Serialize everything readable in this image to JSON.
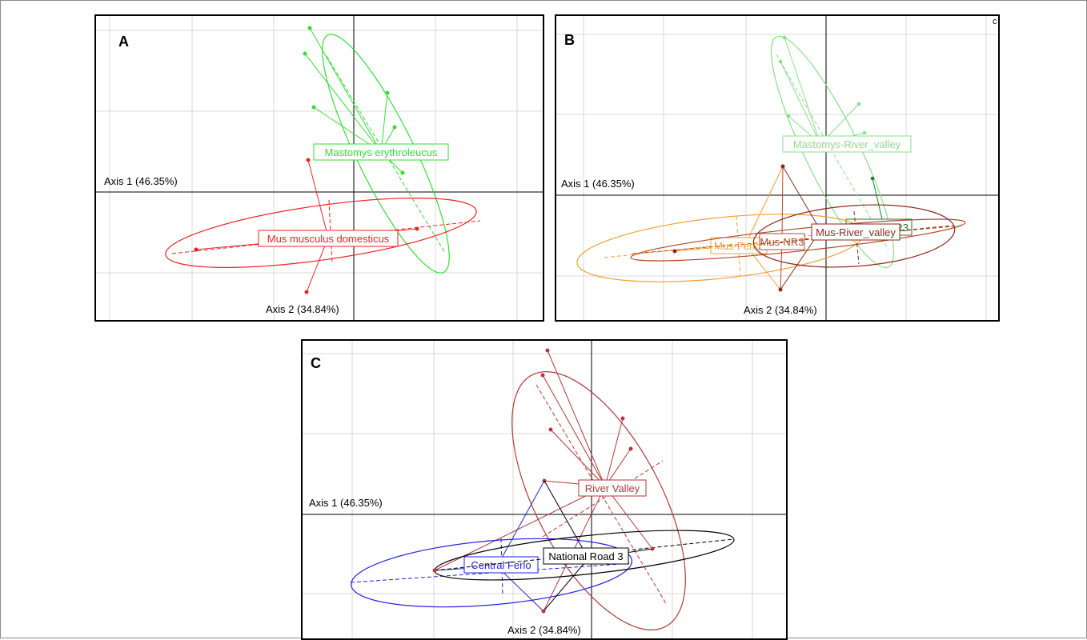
{
  "colors": {
    "grid": "#d9d9d9",
    "axis": "#000000",
    "mastomys": "#33dd33",
    "mus": "#ee2222",
    "mastomys_river_valley": "#88e088",
    "mus_ferlo": "#f0a030",
    "mus_nr3": "#b04a28",
    "mus_river_valley": "#8a2a18",
    "mastomys_nr3": "#227a22",
    "river_valley": "#b03a3a",
    "central_ferlo": "#2222dd",
    "national_road_3": "#000000"
  },
  "panels": [
    {
      "letter": "A",
      "xlabel": "Axis 1 (46.35%)",
      "ylabel": "Axis 2 (34.84%)"
    },
    {
      "letter": "B",
      "xlabel": "Axis 1 (46.35%)",
      "ylabel": "Axis 2 (34.84%)",
      "corner_mark": "c"
    },
    {
      "letter": "C",
      "xlabel": "Axis 1 (46.35%)",
      "ylabel": "Axis 2 (34.84%)"
    }
  ],
  "chart_data": [
    {
      "type": "scatter",
      "panel": "A",
      "xlabel": "Axis 1 (46.35%)",
      "ylabel": "Axis 2 (34.84%)",
      "grid": true,
      "xlim": [
        -3.0,
        2.3
      ],
      "ylim": [
        -1.6,
        2.0
      ],
      "series": [
        {
          "name": "Mastomys erythroleucus",
          "color": "#33dd33",
          "centroid": [
            0.55,
            0.48
          ],
          "points": [
            [
              -0.55,
              2.05
            ],
            [
              -0.6,
              1.7
            ],
            [
              0.4,
              1.22
            ],
            [
              -0.5,
              1.05
            ],
            [
              0.5,
              0.8
            ],
            [
              0.6,
              0.2
            ]
          ],
          "ellipse": {
            "cx": 0.35,
            "cy": 0.65,
            "rx": 1.55,
            "ry": 0.33,
            "angle_deg": 64
          }
        },
        {
          "name": "Mus musculus domesticus",
          "color": "#ee2222",
          "centroid": [
            -0.3,
            -0.55
          ],
          "points": [
            [
              -0.55,
              0.4
            ],
            [
              -1.95,
              -0.72
            ],
            [
              0.8,
              -0.45
            ],
            [
              -0.6,
              -1.25
            ]
          ],
          "ellipse": {
            "cx": -0.6,
            "cy": -0.6,
            "rx": 2.2,
            "ry": 0.3,
            "angle_deg": 8
          }
        }
      ]
    },
    {
      "type": "scatter",
      "panel": "B",
      "xlabel": "Axis 1 (46.35%)",
      "ylabel": "Axis 2 (34.84%)",
      "grid": true,
      "xlim": [
        -3.0,
        2.4
      ],
      "ylim": [
        -1.5,
        2.0
      ],
      "series": [
        {
          "name": "Mastomys-River_valley",
          "color": "#88e088",
          "centroid": [
            0.3,
            0.62
          ],
          "points": [
            [
              -0.55,
              1.95
            ],
            [
              -0.6,
              1.65
            ],
            [
              0.4,
              1.12
            ],
            [
              -0.5,
              0.95
            ],
            [
              0.5,
              0.75
            ],
            [
              0.6,
              0.15
            ]
          ],
          "ellipse": {
            "cx": 0.3,
            "cy": 0.6,
            "rx": 1.5,
            "ry": 0.32,
            "angle_deg": 64
          }
        },
        {
          "name": "Mus-Ferlo",
          "color": "#f0a030",
          "centroid": [
            -1.1,
            -0.63
          ],
          "points": [
            [
              -0.55,
              0.35
            ],
            [
              -1.9,
              -0.7
            ],
            [
              -0.6,
              -1.2
            ]
          ],
          "ellipse": {
            "cx": -1.2,
            "cy": -0.65,
            "rx": 1.85,
            "ry": 0.45,
            "angle_deg": 6
          }
        },
        {
          "name": "Mus-NR3",
          "color": "#b04a28",
          "centroid": [
            -0.55,
            -0.6
          ],
          "points": [
            [
              -0.55,
              0.35
            ],
            [
              -0.6,
              -1.2
            ]
          ],
          "ellipse": {
            "cx": -0.55,
            "cy": -0.62,
            "rx": 2.45,
            "ry": 0.14,
            "angle_deg": 8
          }
        },
        {
          "name": "Mus-River_valley",
          "color": "#8a2a18",
          "centroid": [
            0.2,
            -0.48
          ],
          "points": [
            [
              -0.55,
              0.35
            ],
            [
              0.75,
              -0.4
            ],
            [
              -0.6,
              -1.2
            ]
          ],
          "ellipse": {
            "cx": 0.4,
            "cy": -0.52,
            "rx": 1.6,
            "ry": 0.42,
            "angle_deg": 4
          }
        },
        {
          "name": "NR3",
          "color": "#227a22",
          "centroid": [
            0.72,
            -0.38
          ],
          "points": [
            [
              0.6,
              0.2
            ]
          ],
          "ellipse": null
        }
      ]
    },
    {
      "type": "scatter",
      "panel": "C",
      "xlabel": "Axis 1 (46.35%)",
      "ylabel": "Axis 2 (34.84%)",
      "grid": true,
      "xlim": [
        -3.6,
        2.1
      ],
      "ylim": [
        -1.5,
        2.1
      ],
      "series": [
        {
          "name": "River Valley",
          "color": "#b03a3a",
          "centroid": [
            0.3,
            0.3
          ],
          "points": [
            [
              -0.55,
              2.05
            ],
            [
              -0.6,
              1.75
            ],
            [
              0.4,
              1.22
            ],
            [
              -0.5,
              1.05
            ],
            [
              0.5,
              0.8
            ],
            [
              -0.6,
              0.4
            ],
            [
              0.8,
              -0.45
            ],
            [
              -0.6,
              -1.25
            ]
          ],
          "ellipse": {
            "cx": 0.25,
            "cy": 0.3,
            "rx": 1.75,
            "ry": 0.65,
            "angle_deg": 62
          }
        },
        {
          "name": "Central Ferlo",
          "color": "#2222dd",
          "centroid": [
            -1.0,
            -0.65
          ],
          "points": [
            [
              -0.6,
              0.4
            ],
            [
              -1.95,
              -0.72
            ],
            [
              -0.6,
              -1.25
            ]
          ],
          "ellipse": {
            "cx": -1.3,
            "cy": -0.72,
            "rx": 1.75,
            "ry": 0.42,
            "angle_deg": 5
          }
        },
        {
          "name": "National Road 3",
          "color": "#000000",
          "centroid": [
            0.0,
            -0.52
          ],
          "points": [
            [
              -1.95,
              -0.72
            ],
            [
              0.8,
              -0.45
            ],
            [
              -0.6,
              -1.25
            ]
          ],
          "ellipse": {
            "cx": -0.55,
            "cy": -0.6,
            "rx": 2.3,
            "ry": 0.25,
            "angle_deg": 7
          }
        }
      ]
    }
  ]
}
